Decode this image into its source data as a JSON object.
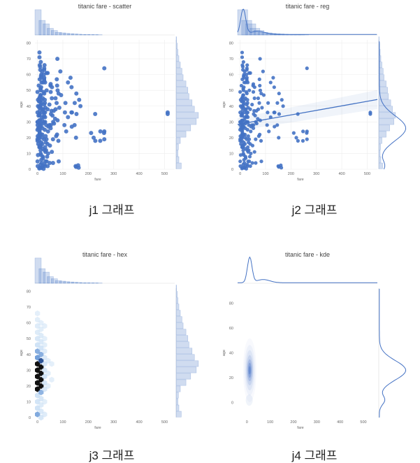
{
  "chart_data": [
    {
      "id": "j1",
      "type": "scatter",
      "title": "titanic fare - scatter",
      "caption": "j1 그래프",
      "xlabel": "fare",
      "ylabel": "age",
      "xlim": [
        -10,
        540
      ],
      "ylim": [
        0,
        82
      ],
      "xticks": [
        0,
        100,
        200,
        300,
        400,
        500
      ],
      "yticks": [
        0,
        10,
        20,
        30,
        40,
        50,
        60,
        70,
        80
      ],
      "grid": true,
      "color": "#4472c4",
      "marginals": "histogram",
      "points": [
        [
          7.2,
          22
        ],
        [
          71.3,
          38
        ],
        [
          7.9,
          26
        ],
        [
          53.1,
          35
        ],
        [
          8.1,
          35
        ],
        [
          51.9,
          54
        ],
        [
          21.1,
          2
        ],
        [
          11.1,
          27
        ],
        [
          30.1,
          14
        ],
        [
          16.7,
          4
        ],
        [
          26.6,
          58
        ],
        [
          8.1,
          20
        ],
        [
          31.3,
          39
        ],
        [
          7.9,
          14
        ],
        [
          16,
          55
        ],
        [
          29.1,
          2
        ],
        [
          18,
          31
        ],
        [
          7.2,
          35
        ],
        [
          26,
          34
        ],
        [
          13,
          15
        ],
        [
          8,
          28
        ],
        [
          21.1,
          8
        ],
        [
          263,
          19
        ],
        [
          7.9,
          40
        ],
        [
          27.7,
          66
        ],
        [
          146.5,
          42
        ],
        [
          7.8,
          21
        ],
        [
          82.2,
          18
        ],
        [
          52,
          49
        ],
        [
          21,
          29
        ],
        [
          247.5,
          24
        ],
        [
          73.5,
          21
        ],
        [
          83.5,
          5
        ],
        [
          56.5,
          11
        ],
        [
          7.8,
          45
        ],
        [
          61.2,
          4
        ],
        [
          34.4,
          28
        ],
        [
          29,
          42
        ],
        [
          35.5,
          19
        ],
        [
          263,
          24
        ],
        [
          15.2,
          60
        ],
        [
          30.1,
          33
        ],
        [
          11.1,
          40
        ],
        [
          133.7,
          36
        ],
        [
          13,
          47
        ],
        [
          90,
          62
        ],
        [
          61.7,
          30
        ],
        [
          7.7,
          14
        ],
        [
          77.3,
          53
        ],
        [
          52.6,
          28
        ],
        [
          56.5,
          45
        ],
        [
          18.8,
          16
        ],
        [
          512.3,
          36
        ],
        [
          512.3,
          35
        ],
        [
          135.6,
          36
        ],
        [
          25.9,
          36
        ],
        [
          153.5,
          35
        ],
        [
          9.5,
          1
        ],
        [
          26.3,
          63
        ],
        [
          227.5,
          18
        ],
        [
          39.7,
          38
        ],
        [
          10.5,
          22
        ],
        [
          46.9,
          28
        ],
        [
          151.6,
          20
        ],
        [
          120,
          55
        ],
        [
          7.9,
          71
        ],
        [
          78.3,
          70
        ],
        [
          26.6,
          64
        ],
        [
          14.5,
          52
        ],
        [
          12.5,
          10
        ],
        [
          7.8,
          74
        ],
        [
          10.5,
          65
        ],
        [
          35.5,
          61
        ],
        [
          26,
          57
        ],
        [
          13.5,
          59
        ],
        [
          8.7,
          57
        ],
        [
          26.6,
          56
        ],
        [
          79.2,
          50
        ],
        [
          13,
          50
        ],
        [
          26.6,
          48
        ],
        [
          11.5,
          47
        ],
        [
          7.3,
          45
        ],
        [
          28.7,
          44
        ],
        [
          9.8,
          43
        ],
        [
          15.5,
          42
        ],
        [
          75.3,
          42
        ],
        [
          13,
          41
        ],
        [
          7.1,
          39
        ],
        [
          20.2,
          38
        ],
        [
          55,
          37
        ],
        [
          29.7,
          36
        ],
        [
          8.05,
          34
        ],
        [
          24.2,
          33
        ],
        [
          69.3,
          32
        ],
        [
          10.5,
          31
        ],
        [
          30,
          30
        ],
        [
          13,
          29
        ],
        [
          7.9,
          27
        ],
        [
          52,
          26
        ],
        [
          8.4,
          25
        ],
        [
          41.6,
          24
        ],
        [
          9.2,
          23
        ],
        [
          13.4,
          22
        ],
        [
          7.75,
          21
        ],
        [
          19.5,
          20
        ],
        [
          26,
          19
        ],
        [
          7.2,
          18
        ],
        [
          14.5,
          17
        ],
        [
          39.7,
          16
        ],
        [
          8.5,
          15
        ],
        [
          11.2,
          14
        ],
        [
          20.5,
          13
        ],
        [
          27.9,
          12
        ],
        [
          31.4,
          11
        ],
        [
          14.4,
          9
        ],
        [
          21.7,
          7
        ],
        [
          15.2,
          6
        ],
        [
          31.3,
          5
        ],
        [
          12.3,
          3
        ],
        [
          16.7,
          1
        ],
        [
          7.2,
          0.5
        ],
        [
          15.7,
          0.8
        ],
        [
          24.1,
          0.3
        ],
        [
          2,
          40
        ],
        [
          0,
          30
        ],
        [
          0,
          25
        ],
        [
          0,
          19
        ],
        [
          0,
          36
        ],
        [
          0,
          49
        ],
        [
          18,
          62
        ],
        [
          64,
          37
        ],
        [
          71,
          45
        ],
        [
          93,
          47
        ],
        [
          106,
          28
        ],
        [
          108,
          36
        ],
        [
          113,
          24
        ],
        [
          120,
          33
        ],
        [
          130,
          58
        ],
        [
          135,
          27
        ],
        [
          211,
          23
        ],
        [
          221,
          20
        ],
        [
          263,
          64
        ],
        [
          262,
          23
        ],
        [
          247,
          18
        ],
        [
          227,
          35
        ],
        [
          164,
          44
        ],
        [
          153,
          48
        ],
        [
          146,
          28
        ],
        [
          134,
          52
        ],
        [
          110,
          42
        ],
        [
          86,
          39
        ],
        [
          83,
          48
        ],
        [
          79,
          31
        ],
        [
          77,
          22
        ],
        [
          76,
          57
        ],
        [
          65,
          29
        ],
        [
          61,
          19
        ],
        [
          59,
          34
        ],
        [
          57,
          52
        ],
        [
          49,
          15
        ],
        [
          47,
          41
        ],
        [
          43,
          27
        ],
        [
          40,
          61
        ],
        [
          38,
          8
        ],
        [
          36,
          50
        ],
        [
          33,
          17
        ],
        [
          30,
          55
        ],
        [
          28,
          3
        ],
        [
          25,
          60
        ],
        [
          23,
          38
        ],
        [
          21,
          45
        ],
        [
          19,
          22
        ],
        [
          17,
          33
        ],
        [
          15,
          58
        ],
        [
          13,
          68
        ],
        [
          12,
          12
        ],
        [
          10,
          46
        ],
        [
          9,
          37
        ],
        [
          8,
          24
        ],
        [
          7,
          31
        ],
        [
          6,
          29
        ],
        [
          6,
          43
        ],
        [
          5,
          20
        ],
        [
          5,
          53
        ],
        [
          4,
          34
        ],
        [
          3,
          26
        ],
        [
          3,
          16
        ],
        [
          2,
          44
        ],
        [
          2,
          9
        ],
        [
          1,
          30
        ],
        [
          1,
          21
        ],
        [
          1,
          2
        ],
        [
          0.5,
          28
        ],
        [
          0.3,
          5
        ],
        [
          0.2,
          18
        ],
        [
          150,
          2
        ],
        [
          152,
          1.5
        ],
        [
          160,
          2.5
        ],
        [
          162,
          1
        ],
        [
          169,
          40
        ],
        [
          51,
          53
        ],
        [
          48,
          4
        ],
        [
          42,
          10
        ],
        [
          40,
          2
        ],
        [
          36,
          5
        ],
        [
          34,
          12
        ],
        [
          32,
          21
        ],
        [
          29,
          25
        ],
        [
          27,
          30
        ],
        [
          26,
          41
        ],
        [
          24,
          49
        ],
        [
          22,
          55
        ],
        [
          20,
          26
        ],
        [
          18,
          36
        ],
        [
          16,
          44
        ],
        [
          14,
          27
        ],
        [
          13,
          39
        ],
        [
          12,
          51
        ],
        [
          11,
          63
        ],
        [
          9,
          66
        ]
      ]
    },
    {
      "id": "j2",
      "type": "scatter",
      "title": "titanic fare - reg",
      "caption": "j2 그래프",
      "xlabel": "fare",
      "ylabel": "age",
      "xlim": [
        -10,
        540
      ],
      "ylim": [
        0,
        82
      ],
      "xticks": [
        0,
        100,
        200,
        300,
        400,
        500
      ],
      "yticks": [
        0,
        10,
        20,
        30,
        40,
        50,
        60,
        70,
        80
      ],
      "grid": true,
      "color": "#4472c4",
      "marginals": "histogram+kde",
      "regression_line": {
        "x": [
          -10,
          540
        ],
        "y": [
          28.4,
          44.2
        ]
      }
    },
    {
      "id": "j3",
      "type": "heatmap",
      "title": "titanic fare - hex",
      "caption": "j3 그래프",
      "xlabel": "fare",
      "ylabel": "age",
      "xlim": [
        -10,
        540
      ],
      "ylim": [
        0,
        82
      ],
      "xticks": [
        0,
        100,
        200,
        300,
        400,
        500
      ],
      "yticks": [
        0,
        10,
        20,
        30,
        40,
        50,
        60,
        70,
        80
      ],
      "grid": false,
      "color": "#4472c4",
      "marginals": "histogram",
      "hexbins": [
        [
          0,
          2,
          0.5
        ],
        [
          0,
          6,
          0.35
        ],
        [
          0,
          10,
          0.3
        ],
        [
          0,
          14,
          0.35
        ],
        [
          0,
          18,
          1
        ],
        [
          0,
          22,
          1
        ],
        [
          0,
          26,
          1
        ],
        [
          0,
          30,
          1
        ],
        [
          0,
          34,
          0.9
        ],
        [
          0,
          38,
          0.6
        ],
        [
          0,
          42,
          0.45
        ],
        [
          0,
          46,
          0.35
        ],
        [
          0,
          50,
          0.25
        ],
        [
          0,
          54,
          0.15
        ],
        [
          0,
          58,
          0.12
        ],
        [
          0,
          62,
          0.08
        ],
        [
          0,
          66,
          0.05
        ],
        [
          14,
          0,
          0.25
        ],
        [
          14,
          4,
          0.2
        ],
        [
          14,
          8,
          0.15
        ],
        [
          14,
          12,
          0.25
        ],
        [
          14,
          16,
          0.4
        ],
        [
          14,
          20,
          0.9
        ],
        [
          14,
          24,
          1
        ],
        [
          14,
          28,
          1
        ],
        [
          14,
          32,
          0.95
        ],
        [
          14,
          36,
          0.7
        ],
        [
          14,
          40,
          0.45
        ],
        [
          14,
          44,
          0.3
        ],
        [
          14,
          48,
          0.2
        ],
        [
          14,
          52,
          0.15
        ],
        [
          14,
          56,
          0.08
        ],
        [
          14,
          60,
          0.05
        ],
        [
          28,
          2,
          0.12
        ],
        [
          28,
          10,
          0.08
        ],
        [
          28,
          18,
          0.2
        ],
        [
          28,
          22,
          0.28
        ],
        [
          28,
          26,
          0.3
        ],
        [
          28,
          30,
          0.25
        ],
        [
          28,
          34,
          0.22
        ],
        [
          28,
          38,
          0.18
        ],
        [
          28,
          42,
          0.12
        ],
        [
          28,
          46,
          0.08
        ],
        [
          28,
          50,
          0.06
        ],
        [
          28,
          58,
          0.05
        ],
        [
          42,
          20,
          0.06
        ],
        [
          42,
          28,
          0.08
        ],
        [
          42,
          36,
          0.06
        ],
        [
          56,
          24,
          0.05
        ],
        [
          56,
          34,
          0.05
        ]
      ]
    },
    {
      "id": "j4",
      "type": "heatmap",
      "title": "titanic fare - kde",
      "caption": "j4 그래프",
      "xlabel": "fare",
      "ylabel": "age",
      "xlim": [
        -40,
        560
      ],
      "ylim": [
        -12,
        92
      ],
      "xticks": [
        0,
        100,
        200,
        300,
        400,
        500
      ],
      "yticks": [
        0,
        20,
        40,
        60,
        80
      ],
      "grid": false,
      "color": "#4472c4",
      "marginals": "kde"
    }
  ]
}
